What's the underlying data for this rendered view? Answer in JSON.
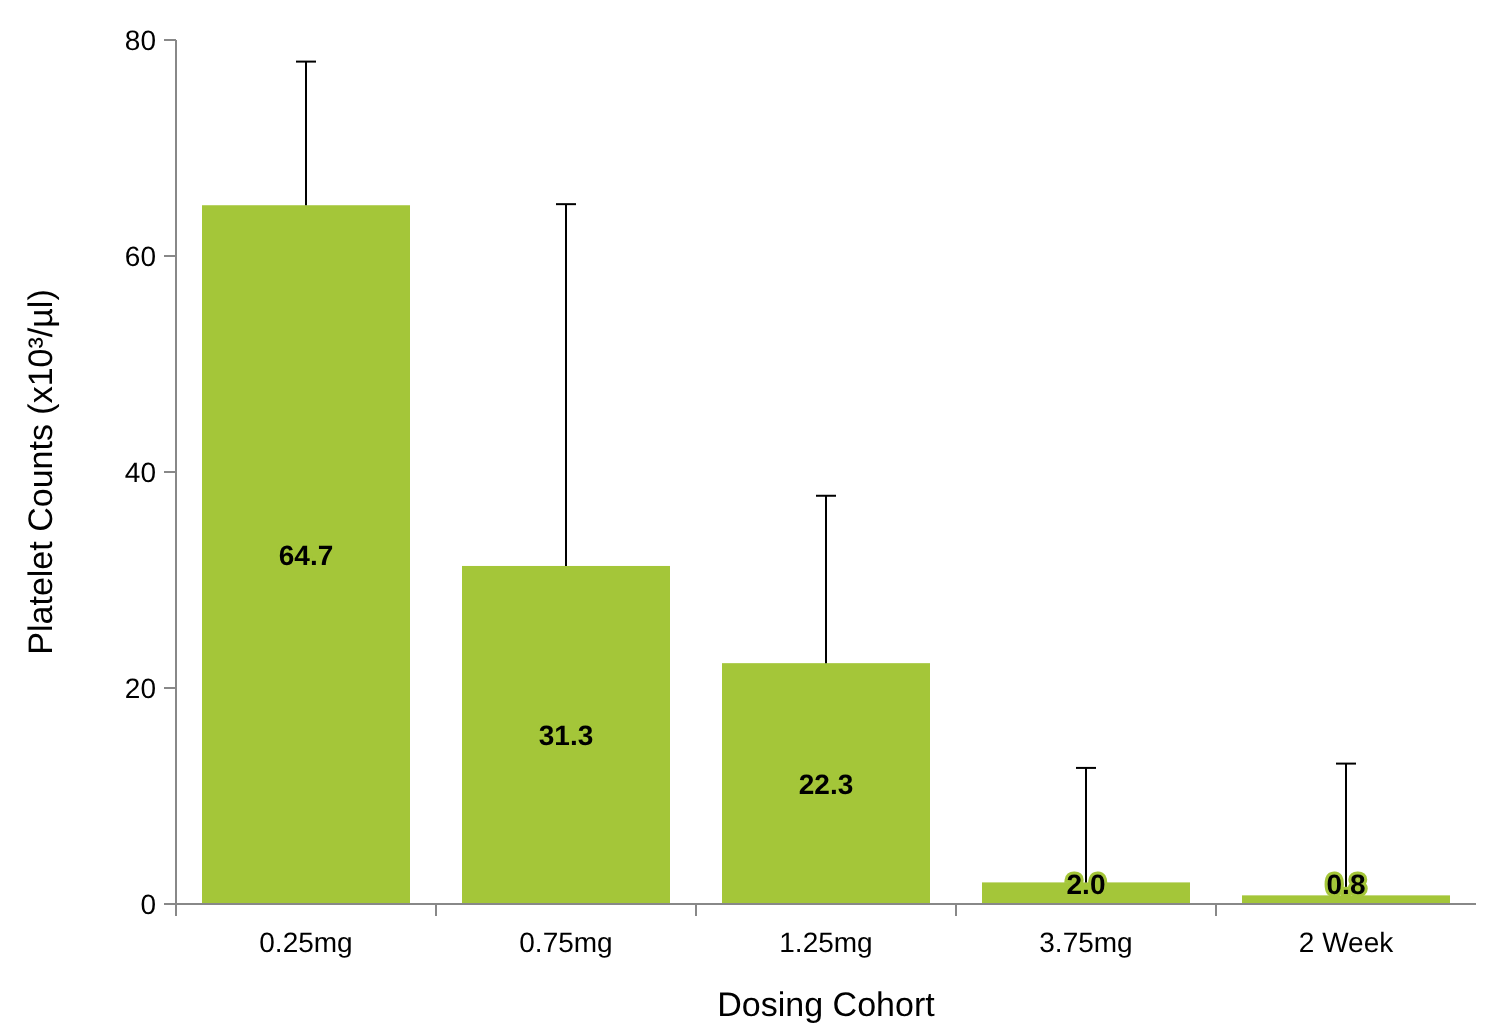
{
  "chart_data": {
    "type": "bar",
    "xlabel": "Dosing Cohort",
    "ylabel": "Platelet Counts (x10³/µl)",
    "categories": [
      "0.25mg",
      "0.75mg",
      "1.25mg",
      "3.75mg",
      "2 Week"
    ],
    "values": [
      64.7,
      31.3,
      22.3,
      2.0,
      0.8
    ],
    "value_labels": [
      "64.7",
      "31.3",
      "22.3",
      "2.0",
      "0.8"
    ],
    "errors": [
      [
        64.7,
        78
      ],
      [
        31.3,
        64.8
      ],
      [
        22.3,
        37.8
      ],
      [
        2.0,
        12.6
      ],
      [
        0.8,
        13.0
      ]
    ],
    "color": "#a4c639",
    "ylim": [
      0,
      80
    ],
    "yticks": [
      0,
      20,
      40,
      60,
      80
    ],
    "grid": false
  }
}
